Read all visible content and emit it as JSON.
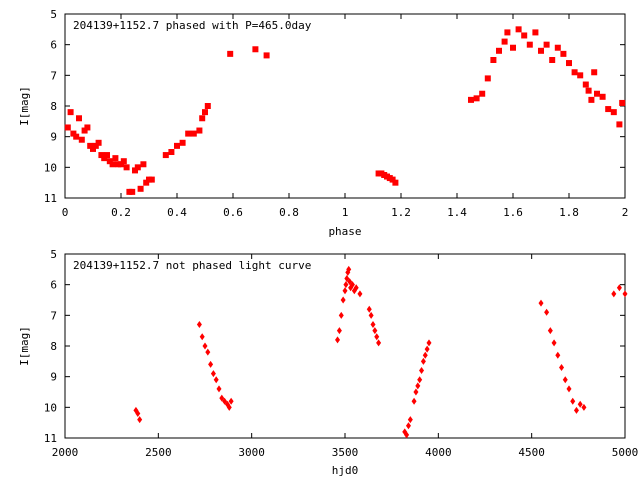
{
  "chart_data": [
    {
      "type": "scatter",
      "title": "204139+1152.7 phased with P=465.0day",
      "xlabel": "phase",
      "ylabel": "I[mag]",
      "xlim": [
        0,
        2
      ],
      "ylim": [
        11,
        5
      ],
      "y_inverted": true,
      "xticks": [
        "0",
        "0.2",
        "0.4",
        "0.6",
        "0.8",
        "1",
        "1.2",
        "1.4",
        "1.6",
        "1.8",
        "2"
      ],
      "yticks": [
        "5",
        "6",
        "7",
        "8",
        "9",
        "10",
        "11"
      ],
      "color": "#ff0000",
      "marker": "filled square",
      "series": [
        {
          "x": [
            0.01,
            0.02,
            0.03,
            0.04,
            0.05,
            0.06,
            0.07,
            0.08,
            0.09,
            0.1,
            0.11,
            0.12,
            0.13,
            0.14,
            0.15,
            0.16,
            0.17,
            0.18,
            0.19,
            0.2,
            0.21,
            0.22,
            0.23,
            0.24,
            0.25,
            0.26,
            0.27,
            0.28,
            0.29,
            0.3,
            0.31,
            0.36,
            0.38,
            0.4,
            0.42,
            0.44,
            0.46,
            0.48,
            0.49,
            0.5,
            0.51,
            0.59,
            0.68,
            0.72,
            1.12,
            1.13,
            1.14,
            1.15,
            1.16,
            1.17,
            1.18,
            1.45,
            1.47,
            1.49,
            1.51,
            1.53,
            1.55,
            1.57,
            1.58,
            1.6,
            1.62,
            1.64,
            1.66,
            1.68,
            1.7,
            1.72,
            1.74,
            1.76,
            1.78,
            1.8,
            1.82,
            1.84,
            1.86,
            1.87,
            1.88,
            1.89,
            1.9,
            1.92,
            1.94,
            1.96,
            1.98,
            1.99
          ],
          "y": [
            8.7,
            8.2,
            8.9,
            9.0,
            8.4,
            9.1,
            8.8,
            8.7,
            9.3,
            9.4,
            9.3,
            9.2,
            9.6,
            9.7,
            9.6,
            9.8,
            9.9,
            9.7,
            9.9,
            9.9,
            9.8,
            10.0,
            10.8,
            10.8,
            10.1,
            10.0,
            10.7,
            9.9,
            10.5,
            10.4,
            10.4,
            9.6,
            9.5,
            9.3,
            9.2,
            8.9,
            8.9,
            8.8,
            8.4,
            8.2,
            8.0,
            6.3,
            6.15,
            6.35,
            10.2,
            10.2,
            10.25,
            10.3,
            10.35,
            10.4,
            10.5,
            7.8,
            7.75,
            7.6,
            7.1,
            6.5,
            6.2,
            5.9,
            5.6,
            6.1,
            5.5,
            5.7,
            6.0,
            5.6,
            6.2,
            6.0,
            6.5,
            6.1,
            6.3,
            6.6,
            6.9,
            7.0,
            7.3,
            7.5,
            7.8,
            6.9,
            7.6,
            7.7,
            8.1,
            8.2,
            8.6,
            7.9
          ]
        }
      ]
    },
    {
      "type": "scatter",
      "title": "204139+1152.7 not phased light curve",
      "xlabel": "hjd0",
      "ylabel": "I[mag]",
      "xlim": [
        2000,
        5000
      ],
      "ylim": [
        11,
        5
      ],
      "y_inverted": true,
      "xticks": [
        "2000",
        "2500",
        "3000",
        "3500",
        "4000",
        "4500",
        "5000"
      ],
      "yticks": [
        "5",
        "6",
        "7",
        "8",
        "9",
        "10",
        "11"
      ],
      "color": "#ff0000",
      "marker": "filled diamond",
      "series": [
        {
          "x": [
            2380,
            2390,
            2400,
            2720,
            2735,
            2750,
            2765,
            2780,
            2795,
            2810,
            2825,
            2840,
            2855,
            2870,
            2880,
            2890,
            3460,
            3470,
            3480,
            3490,
            3500,
            3505,
            3510,
            3515,
            3520,
            3525,
            3530,
            3540,
            3550,
            3560,
            3580,
            3630,
            3640,
            3650,
            3660,
            3670,
            3680,
            3820,
            3830,
            3840,
            3850,
            3870,
            3880,
            3890,
            3900,
            3910,
            3920,
            3930,
            3940,
            3950,
            4550,
            4580,
            4600,
            4620,
            4640,
            4660,
            4680,
            4700,
            4720,
            4740,
            4760,
            4780,
            4940,
            4970,
            5000
          ],
          "y": [
            10.1,
            10.2,
            10.4,
            7.3,
            7.7,
            8.0,
            8.2,
            8.6,
            8.9,
            9.1,
            9.4,
            9.7,
            9.8,
            9.9,
            10.0,
            9.8,
            7.8,
            7.5,
            7.0,
            6.5,
            6.2,
            6.0,
            5.8,
            5.6,
            5.5,
            5.9,
            6.1,
            6.0,
            6.2,
            6.1,
            6.3,
            6.8,
            7.0,
            7.3,
            7.5,
            7.7,
            7.9,
            10.8,
            10.9,
            10.6,
            10.4,
            9.8,
            9.5,
            9.3,
            9.1,
            8.8,
            8.5,
            8.3,
            8.1,
            7.9,
            6.6,
            6.9,
            7.5,
            7.9,
            8.3,
            8.7,
            9.1,
            9.4,
            9.8,
            10.1,
            9.9,
            10.0,
            6.3,
            6.1,
            6.3
          ]
        }
      ]
    }
  ]
}
